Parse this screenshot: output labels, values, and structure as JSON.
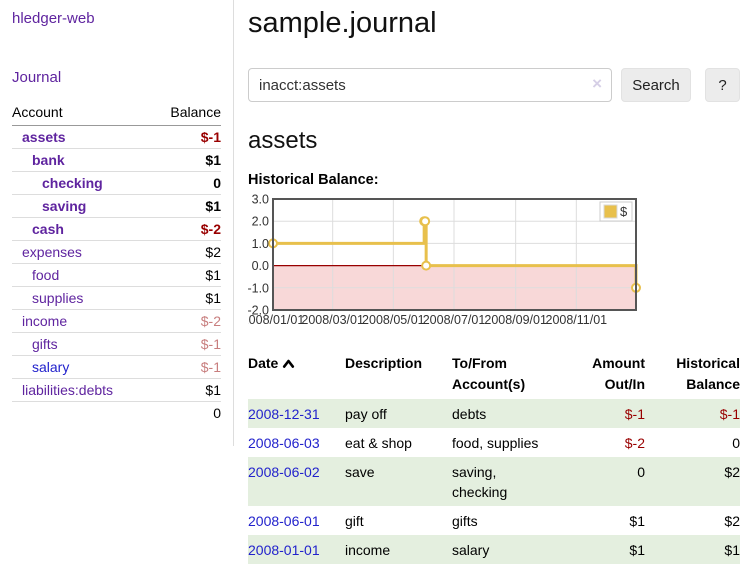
{
  "app": {
    "brand": "hledger-web",
    "nav_journal": "Journal"
  },
  "sidebar": {
    "headers": {
      "account": "Account",
      "balance": "Balance"
    },
    "accounts": [
      {
        "name": "assets",
        "balance": "$-1",
        "indent": 1,
        "emph": true,
        "unvisited": false
      },
      {
        "name": "bank",
        "balance": "$1",
        "indent": 2,
        "emph": true,
        "unvisited": false
      },
      {
        "name": "checking",
        "balance": "0",
        "indent": 3,
        "emph": true,
        "unvisited": false
      },
      {
        "name": "saving",
        "balance": "$1",
        "indent": 3,
        "emph": true,
        "unvisited": false
      },
      {
        "name": "cash",
        "balance": "$-2",
        "indent": 2,
        "emph": true,
        "unvisited": false
      },
      {
        "name": "expenses",
        "balance": "$2",
        "indent": 1,
        "emph": false,
        "unvisited": false
      },
      {
        "name": "food",
        "balance": "$1",
        "indent": 2,
        "emph": false,
        "unvisited": false
      },
      {
        "name": "supplies",
        "balance": "$1",
        "indent": 2,
        "emph": false,
        "unvisited": false
      },
      {
        "name": "income",
        "balance": "$-2",
        "indent": 1,
        "emph": false,
        "unvisited": false
      },
      {
        "name": "gifts",
        "balance": "$-1",
        "indent": 2,
        "emph": false,
        "unvisited": false
      },
      {
        "name": "salary",
        "balance": "$-1",
        "indent": 2,
        "emph": false,
        "unvisited": true
      },
      {
        "name": "liabilities:debts",
        "balance": "$1",
        "indent": 1,
        "emph": false,
        "unvisited": false
      }
    ],
    "total": "0"
  },
  "header": {
    "title": "sample.journal"
  },
  "search": {
    "value": "inacct:assets",
    "clear_icon": "×",
    "button_label": "Search",
    "help_label": "?"
  },
  "account_page": {
    "heading": "assets",
    "chart_title": "Historical Balance:"
  },
  "chart_data": {
    "type": "line",
    "title": "Historical Balance",
    "step": true,
    "series": [
      {
        "name": "$",
        "points": [
          [
            "2008-01-01",
            1
          ],
          [
            "2008-06-01",
            2
          ],
          [
            "2008-06-02",
            2
          ],
          [
            "2008-06-03",
            0
          ],
          [
            "2008-12-31",
            -1
          ]
        ]
      }
    ],
    "x_range": [
      "2008-01-01",
      "2008-12-31"
    ],
    "ylim": [
      -2,
      3
    ],
    "y_ticks": [
      3.0,
      2.0,
      1.0,
      0.0,
      -1.0,
      -2.0
    ],
    "x_tick_labels": [
      "2008/01/01",
      "2008/03/01",
      "2008/05/01",
      "2008/07/01",
      "2008/09/01",
      "2008/11/01"
    ],
    "grid": true,
    "legend_position": "top-right",
    "negative_region_shaded": true,
    "colors": {
      "line": "#e8c04c",
      "marker_fill": "#ffffff",
      "negative_fill": "#f8d8d8",
      "zero_line": "#990000",
      "grid": "#dddddd",
      "border": "#555555"
    }
  },
  "register": {
    "headers": {
      "date": "Date",
      "description": "Description",
      "accounts": "To/From Account(s)",
      "amount": "Amount Out/In",
      "balance": "Historical Balance"
    },
    "rows": [
      {
        "date": "2008-12-31",
        "description": "pay off",
        "accounts": "debts",
        "amount": "$-1",
        "balance": "$-1"
      },
      {
        "date": "2008-06-03",
        "description": "eat & shop",
        "accounts": "food, supplies",
        "amount": "$-2",
        "balance": "0"
      },
      {
        "date": "2008-06-02",
        "description": "save",
        "accounts": "saving,\nchecking",
        "amount": "0",
        "balance": "$2"
      },
      {
        "date": "2008-06-01",
        "description": "gift",
        "accounts": "gifts",
        "amount": "$1",
        "balance": "$2"
      },
      {
        "date": "2008-01-01",
        "description": "income",
        "accounts": "salary",
        "amount": "$1",
        "balance": "$1"
      }
    ]
  }
}
